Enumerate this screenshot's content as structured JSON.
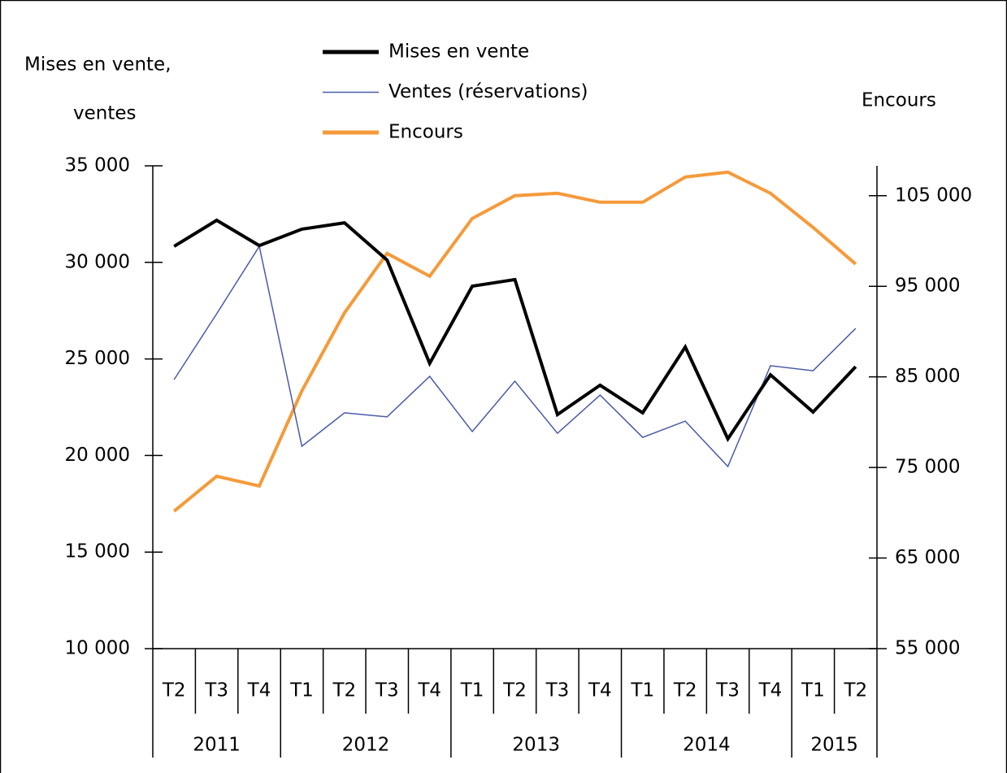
{
  "chart_data": {
    "type": "line",
    "y_label": [
      "Mises en vente,",
      "ventes"
    ],
    "y2_label": "Encours",
    "categories": [
      "T2",
      "T3",
      "T4",
      "T1",
      "T2",
      "T3",
      "T4",
      "T1",
      "T2",
      "T3",
      "T4",
      "T1",
      "T2",
      "T3",
      "T4",
      "T1",
      "T2"
    ],
    "years": [
      "2011",
      "2011",
      "2011",
      "2012",
      "2012",
      "2012",
      "2012",
      "2013",
      "2013",
      "2013",
      "2013",
      "2014",
      "2014",
      "2014",
      "2014",
      "2015",
      "2015"
    ],
    "series": [
      {
        "name": "Mises en vente",
        "color": "#000000",
        "values": [
          30830,
          32180,
          30870,
          31720,
          32050,
          30120,
          24770,
          28770,
          29110,
          22120,
          23640,
          22210,
          25620,
          20860,
          24180,
          22250,
          24600
        ]
      },
      {
        "name": "Ventes (réservations)",
        "color": "#4a5aa8",
        "values": [
          23930,
          27340,
          30830,
          20480,
          22210,
          22000,
          24100,
          21240,
          23850,
          21150,
          23130,
          20940,
          21780,
          19430,
          24650,
          24390,
          26580
        ]
      },
      {
        "name": "Encours",
        "color": "#f59a3a",
        "axis": "y2",
        "values": [
          70170,
          74030,
          72950,
          83460,
          92070,
          98630,
          96110,
          102490,
          105000,
          105270,
          104280,
          104280,
          107060,
          107600,
          105270,
          101500,
          97460
        ]
      }
    ],
    "ylim": [
      10000,
      35000
    ],
    "yticks": [
      {
        "value": 10000,
        "label": "10 000"
      },
      {
        "value": 15000,
        "label": "15 000"
      },
      {
        "value": 20000,
        "label": "20 000"
      },
      {
        "value": 25000,
        "label": "25 000"
      },
      {
        "value": 30000,
        "label": "30 000"
      },
      {
        "value": 35000,
        "label": "35 000"
      }
    ],
    "y2lim": [
      55000,
      108300
    ],
    "y2ticks": [
      {
        "value": 55000,
        "label": "55 000"
      },
      {
        "value": 65000,
        "label": "65 000"
      },
      {
        "value": 75000,
        "label": "75 000"
      },
      {
        "value": 85000,
        "label": "85 000"
      },
      {
        "value": 95000,
        "label": "95 000"
      },
      {
        "value": 105000,
        "label": "105 000"
      }
    ]
  }
}
